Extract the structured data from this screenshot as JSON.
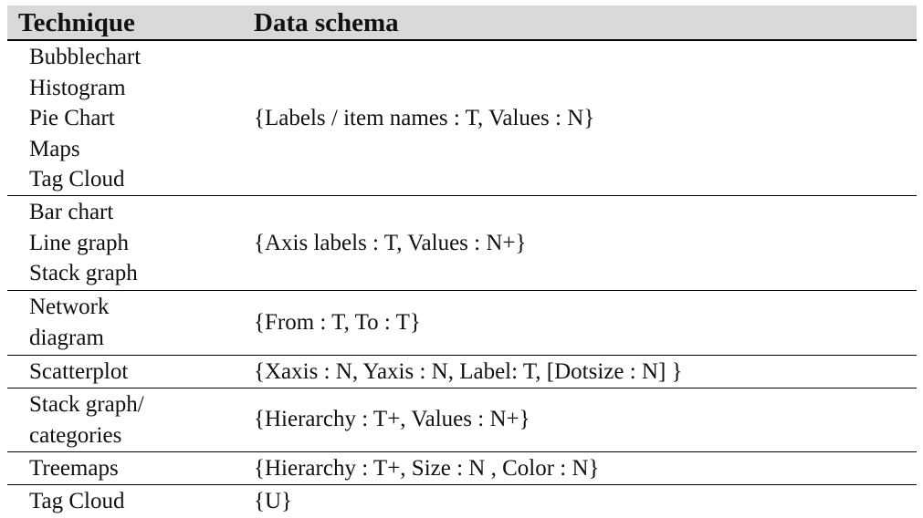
{
  "table": {
    "headers": {
      "technique": "Technique",
      "schema": "Data schema"
    },
    "rows": [
      {
        "techniques": [
          "Bubblechart",
          "Histogram",
          "Pie Chart",
          "Maps",
          "Tag Cloud"
        ],
        "schema": "{Labels / item names : T, Values : N}"
      },
      {
        "techniques": [
          "Bar chart",
          "Line graph",
          "Stack graph"
        ],
        "schema": "{Axis labels : T, Values : N+}"
      },
      {
        "techniques": [
          "Network",
          "diagram"
        ],
        "schema": "{From : T, To : T}"
      },
      {
        "techniques": [
          "Scatterplot"
        ],
        "schema": "{Xaxis : N, Yaxis : N, Label: T, [Dotsize : N] }"
      },
      {
        "techniques": [
          "Stack graph/",
          "categories"
        ],
        "schema": "{Hierarchy : T+, Values : N+}"
      },
      {
        "techniques": [
          "Treemaps"
        ],
        "schema": "{Hierarchy : T+, Size : N , Color : N}"
      },
      {
        "techniques": [
          "Tag Cloud"
        ],
        "schema": "{U}"
      }
    ]
  }
}
